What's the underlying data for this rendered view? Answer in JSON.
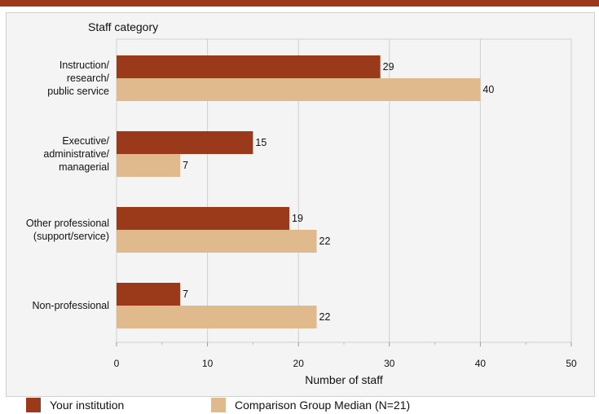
{
  "chart_data": {
    "type": "bar",
    "orientation": "horizontal",
    "title": "Staff category",
    "xlabel": "Number of staff",
    "xlim": [
      0,
      50
    ],
    "xticks": [
      0,
      10,
      20,
      30,
      40,
      50
    ],
    "grid": true,
    "categories": [
      [
        "Instruction/",
        "research/",
        "public service"
      ],
      [
        "Executive/",
        "administrative/",
        "managerial"
      ],
      [
        "Other professional",
        "(support/service)"
      ],
      [
        "Non-professional"
      ]
    ],
    "series": [
      {
        "name": "Your institution",
        "color": "#9b3a1b",
        "values": [
          29,
          15,
          19,
          7
        ]
      },
      {
        "name": "Comparison Group Median (N=21)",
        "color": "#e0b98d",
        "values": [
          40,
          7,
          22,
          22
        ]
      }
    ],
    "legend_position": "bottom"
  }
}
